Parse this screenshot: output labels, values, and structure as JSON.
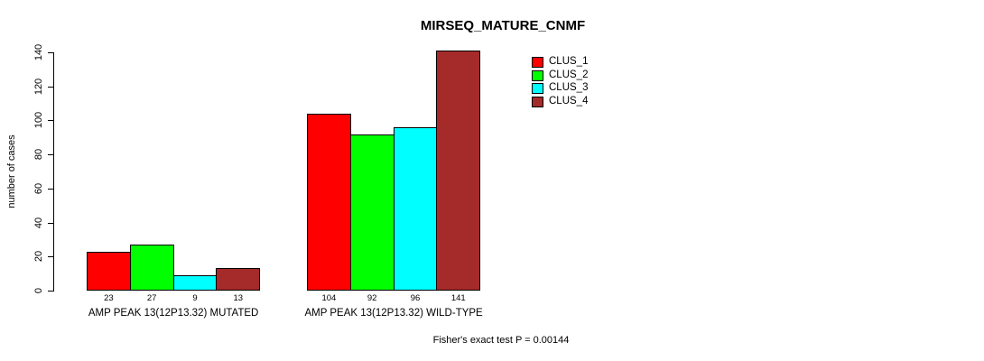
{
  "title": "MIRSEQ_MATURE_CNMF",
  "footer": "Fisher's exact test P = 0.00144",
  "y_axis": {
    "label": "number of cases",
    "ticks": [
      0,
      20,
      40,
      60,
      80,
      100,
      120,
      140
    ]
  },
  "chart_data": {
    "type": "bar",
    "title": "MIRSEQ_MATURE_CNMF",
    "xlabel": "",
    "ylabel": "number of cases",
    "ylim": [
      0,
      140
    ],
    "yticks": [
      0,
      20,
      40,
      60,
      80,
      100,
      120,
      140
    ],
    "grid": false,
    "legend_position": "top-right",
    "categories": [
      "AMP PEAK 13(12P13.32) MUTATED",
      "AMP PEAK 13(12P13.32) WILD-TYPE"
    ],
    "series": [
      {
        "name": "CLUS_1",
        "color": "#FF0000",
        "values": [
          23,
          104
        ]
      },
      {
        "name": "CLUS_2",
        "color": "#00FF00",
        "values": [
          27,
          92
        ]
      },
      {
        "name": "CLUS_3",
        "color": "#00FFFF",
        "values": [
          9,
          96
        ]
      },
      {
        "name": "CLUS_4",
        "color": "#A52A2A",
        "values": [
          13,
          141
        ]
      }
    ],
    "bar_value_labels": [
      [
        23,
        27,
        9,
        13
      ],
      [
        104,
        92,
        96,
        141
      ]
    ],
    "annotation": "Fisher's exact test P = 0.00144"
  }
}
